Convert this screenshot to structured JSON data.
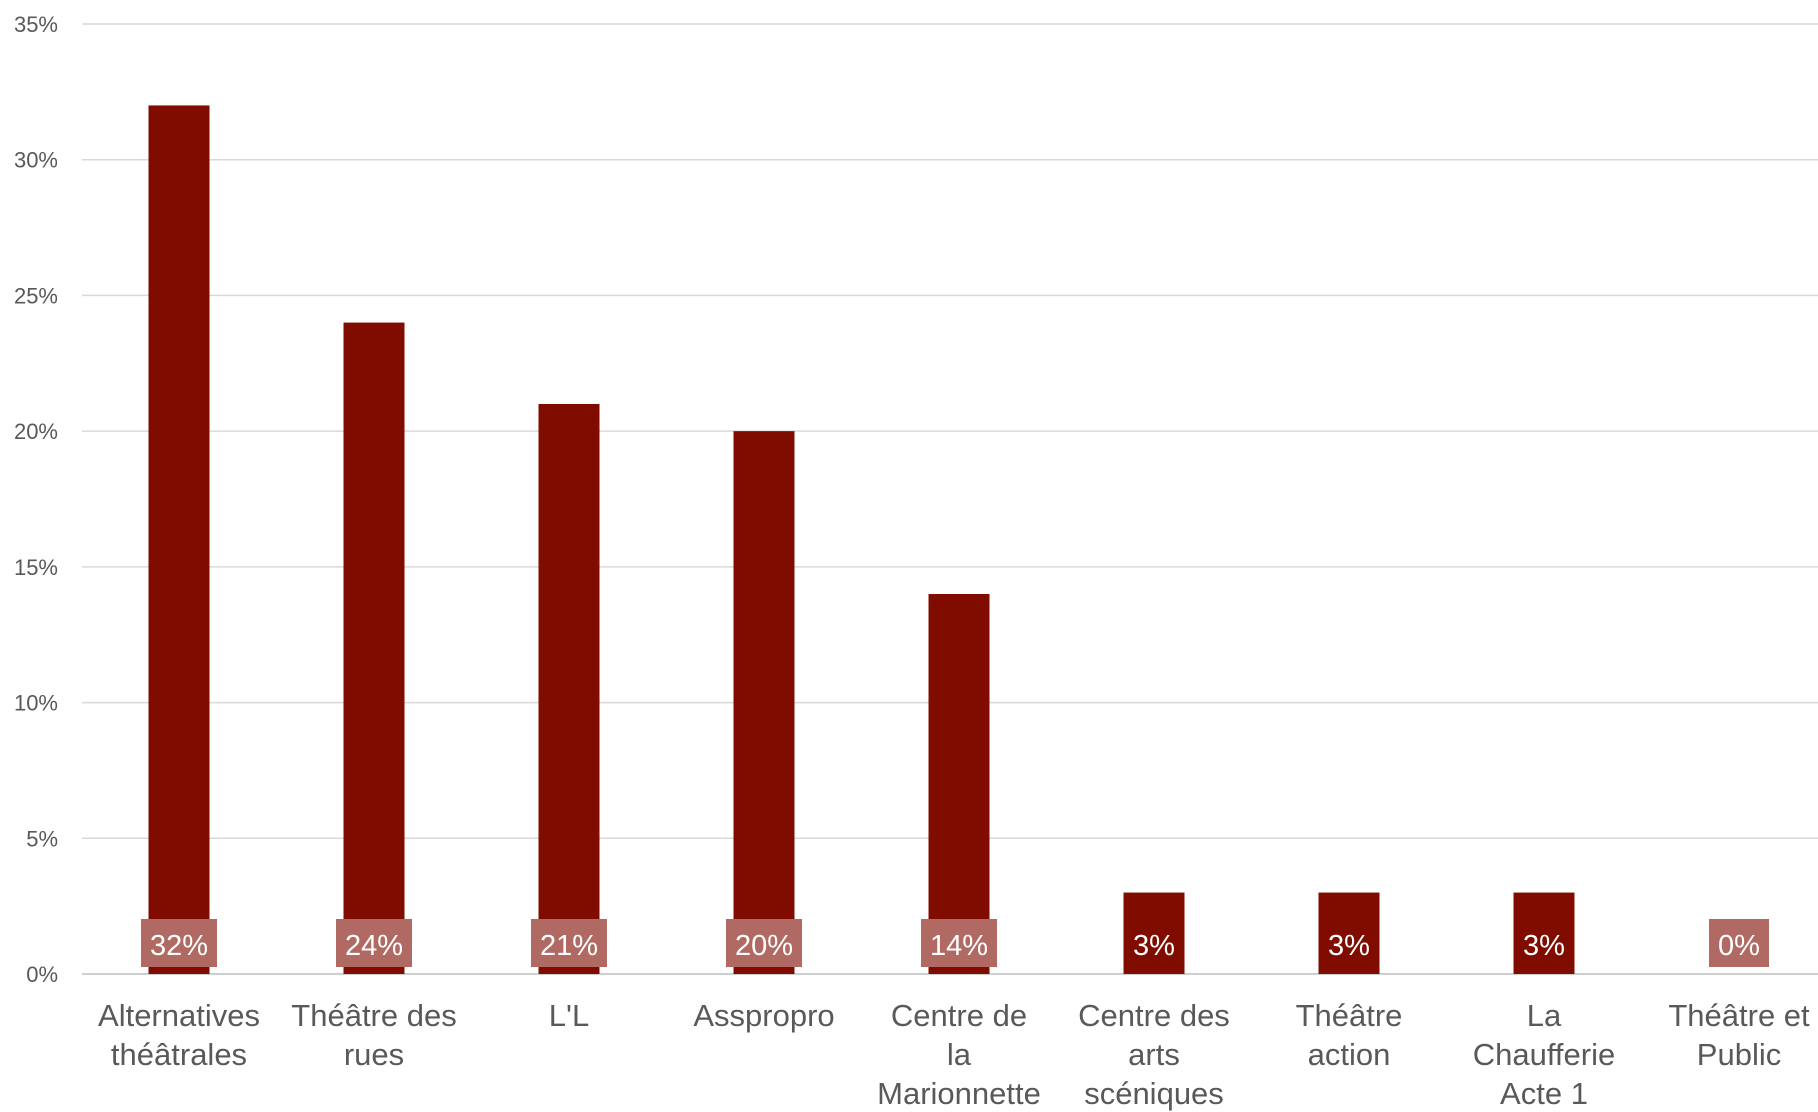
{
  "chart_data": {
    "type": "bar",
    "categories": [
      [
        "Alternatives",
        "théâtrales"
      ],
      [
        "Théâtre des",
        "rues"
      ],
      [
        "L'L"
      ],
      [
        "Asspropro"
      ],
      [
        "Centre de",
        "la",
        "Marionnette"
      ],
      [
        "Centre des",
        "arts",
        "scéniques"
      ],
      [
        "Théâtre",
        "action"
      ],
      [
        "La",
        "Chaufferie",
        "Acte 1"
      ],
      [
        "Théâtre et",
        "Public"
      ]
    ],
    "values": [
      32,
      24,
      21,
      20,
      14,
      3,
      3,
      3,
      0
    ],
    "data_labels": [
      "32%",
      "24%",
      "21%",
      "20%",
      "14%",
      "3%",
      "3%",
      "3%",
      "0%"
    ],
    "y_ticks": [
      "0%",
      "5%",
      "10%",
      "15%",
      "20%",
      "25%",
      "30%",
      "35%"
    ],
    "ylim": [
      0,
      35
    ],
    "y_tick_step": 5,
    "grid": true,
    "legend": "none",
    "title": "",
    "xlabel": "",
    "ylabel": "",
    "colors": {
      "bar": "#800c00",
      "label_box": "#b06a63",
      "label_text": "#ffffff",
      "grid": "#d9d9d9",
      "axis_text": "#595959"
    }
  }
}
